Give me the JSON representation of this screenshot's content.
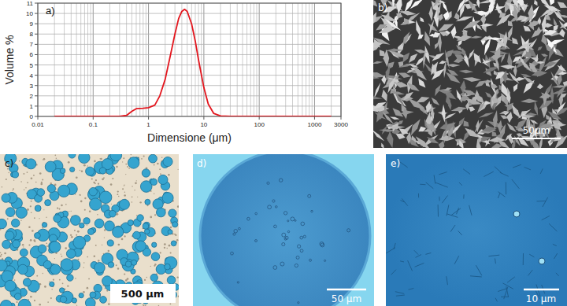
{
  "chart_data": {
    "type": "line",
    "title": "a)",
    "xlabel": "Dimensione (μm)",
    "ylabel": "Volume %",
    "log": "x",
    "grid": true,
    "color": "#e3161e",
    "xlim": [
      0.01,
      3000
    ],
    "ylim": [
      0,
      11
    ],
    "xticks": [
      0.01,
      0.1,
      1,
      10,
      100,
      1000,
      3000
    ],
    "yticks": [
      0,
      1,
      2,
      3,
      4,
      5,
      6,
      7,
      8,
      9,
      10,
      11
    ],
    "x": [
      0.02,
      0.1,
      0.3,
      0.4,
      0.5,
      0.6,
      0.8,
      1,
      1.3,
      1.6,
      2,
      2.5,
      3,
      3.5,
      4,
      4.5,
      5,
      6,
      7,
      8,
      10,
      12,
      15,
      20,
      30,
      100,
      2000
    ],
    "values": [
      0,
      0,
      0,
      0.1,
      0.5,
      0.75,
      0.8,
      0.85,
      1.1,
      2.0,
      3.6,
      6.0,
      8.0,
      9.5,
      10.2,
      10.4,
      10.2,
      9.0,
      7.3,
      5.5,
      2.8,
      1.2,
      0.3,
      0.05,
      0,
      0,
      0
    ]
  },
  "panels": [
    {
      "label": "b)",
      "scale_bar": "50µm"
    },
    {
      "label": "c)",
      "scale_bar": "500 µm"
    },
    {
      "label": "d)",
      "scale_bar": "50 µm"
    },
    {
      "label": "e)",
      "scale_bar": "10 µm"
    }
  ]
}
